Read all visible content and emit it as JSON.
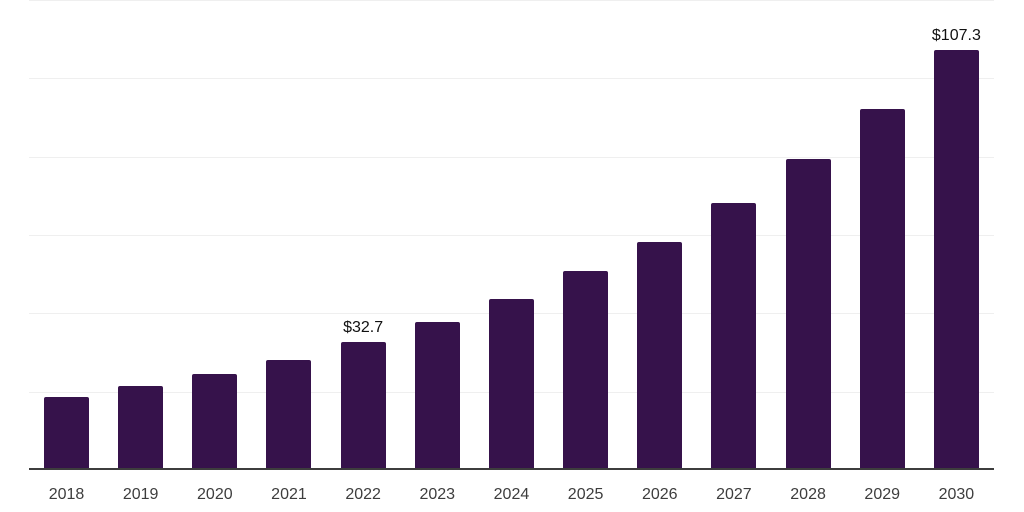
{
  "chart_data": {
    "type": "bar",
    "title": "",
    "xlabel": "",
    "ylabel": "",
    "categories": [
      "2018",
      "2019",
      "2020",
      "2021",
      "2022",
      "2023",
      "2024",
      "2025",
      "2026",
      "2027",
      "2028",
      "2029",
      "2030"
    ],
    "values": [
      18.6,
      21.4,
      24.6,
      28.0,
      32.7,
      37.7,
      43.7,
      50.7,
      58.3,
      68.1,
      79.4,
      92.2,
      107.3
    ],
    "labeled_points": [
      {
        "category": "2022",
        "label": "$32.7"
      },
      {
        "category": "2030",
        "label": "$107.3"
      }
    ],
    "ylim": [
      0,
      120
    ],
    "gridline_interval": 20,
    "grid": true,
    "legend": false
  },
  "style": {
    "background": "#ffffff",
    "bar_color": "#36124b",
    "gridline_color": "#efefef",
    "axis_color": "#3d3d3d",
    "tick_label_color": "#3d3d3d",
    "value_label_color": "#111111"
  }
}
